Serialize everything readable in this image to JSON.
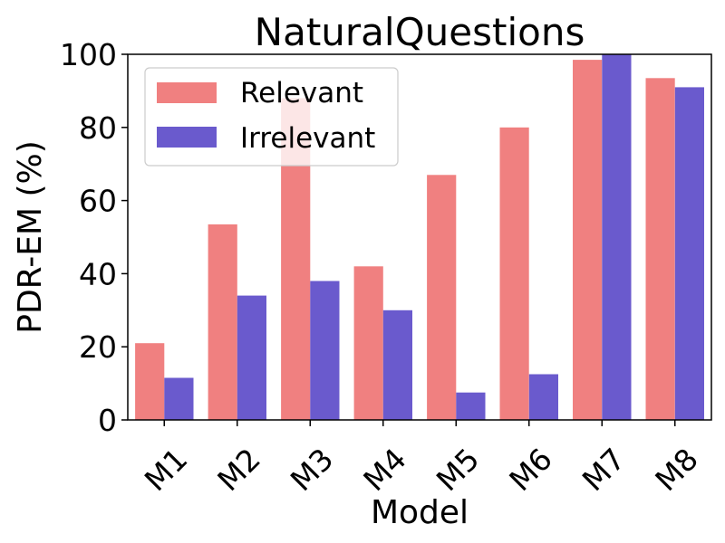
{
  "chart_data": {
    "type": "bar",
    "title": "NaturalQuestions",
    "xlabel": "Model",
    "ylabel": "PDR-EM (%)",
    "categories": [
      "M1",
      "M2",
      "M3",
      "M4",
      "M5",
      "M6",
      "M7",
      "M8"
    ],
    "ylim": [
      0,
      100
    ],
    "yticks": [
      "0",
      "20",
      "40",
      "60",
      "80",
      "100"
    ],
    "grid": false,
    "legend_position": "top-left",
    "series": [
      {
        "name": "Relevant",
        "color": "#f08080",
        "values": [
          21,
          53.5,
          88,
          42,
          67,
          80,
          98.5,
          93.5
        ]
      },
      {
        "name": "Irrelevant",
        "color": "#6a5acd",
        "values": [
          11.5,
          34,
          38,
          30,
          7.5,
          12.5,
          100,
          91
        ]
      }
    ]
  }
}
